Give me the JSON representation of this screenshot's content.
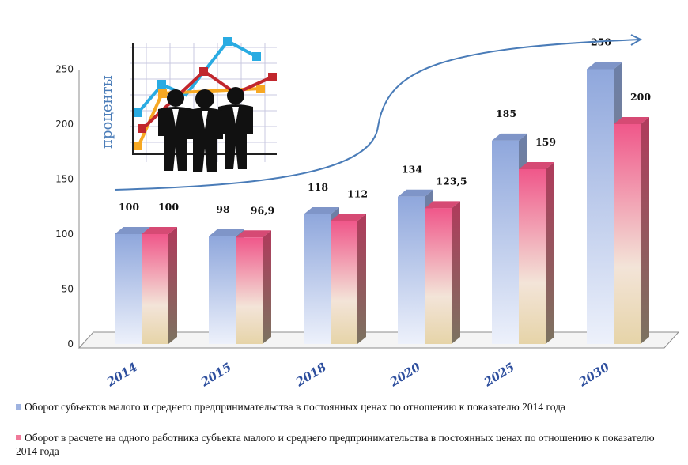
{
  "chart_data": {
    "type": "bar",
    "categories": [
      "2014",
      "2015",
      "2018",
      "2020",
      "2025",
      "2030"
    ],
    "series": [
      {
        "name": "Оборот субъектов малого и среднего предпринимательства в постоянных ценах по отношению к показателю 2014 года",
        "values": [
          100,
          98,
          118,
          134,
          185,
          250
        ],
        "labels": [
          "100",
          "98",
          "118",
          "134",
          "185",
          "250"
        ],
        "color": "#9fb3e0"
      },
      {
        "name": "Оборот в расчете на одного работника субъекта малого и среднего предпринимательства в постоянных ценах по отношению к показателю 2014 года",
        "values": [
          100,
          96.9,
          112,
          123.5,
          159,
          200
        ],
        "labels": [
          "100",
          "96,9",
          "112",
          "123,5",
          "159",
          "200"
        ],
        "color": "#f07a9a"
      }
    ],
    "yticks": [
      "0",
      "50",
      "100",
      "150",
      "200",
      "250"
    ],
    "ylim": [
      0,
      250
    ],
    "ylabel": "проценты",
    "grid": false,
    "legend_position": "bottom"
  }
}
